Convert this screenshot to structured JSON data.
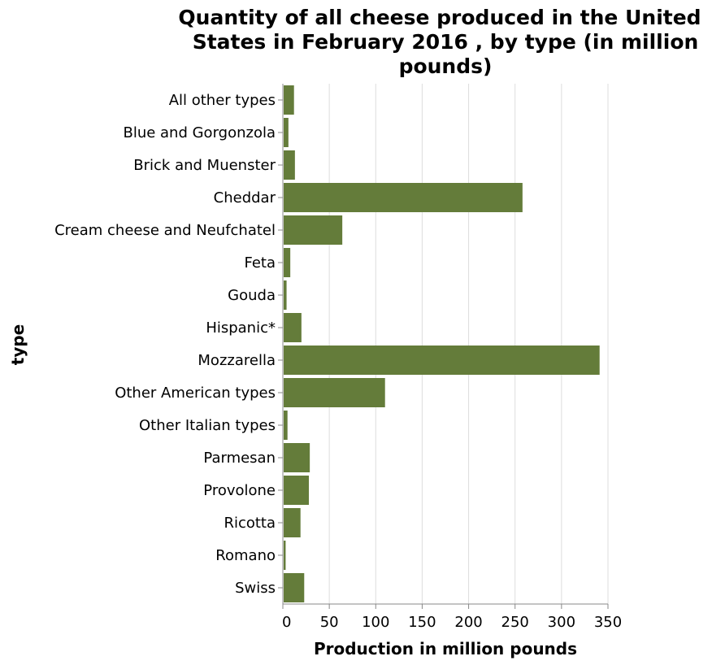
{
  "chart_data": {
    "type": "bar",
    "orientation": "horizontal",
    "title": "Quantity of all cheese produced in the United States in February 2016 , by type (in million pounds)",
    "title_lines": [
      "Quantity of all cheese produced in the United",
      "States in February 2016 , by type (in million",
      "pounds)"
    ],
    "xlabel": "Production in million pounds",
    "ylabel": "type",
    "xlim": [
      0,
      350
    ],
    "x_ticks": [
      0,
      50,
      100,
      150,
      200,
      250,
      300,
      350
    ],
    "grid": true,
    "bar_color": "#647c3a",
    "categories": [
      "All other types",
      "Blue and Gorgonzola",
      "Brick and Muenster",
      "Cheddar",
      "Cream cheese and Neufchatel",
      "Feta",
      "Gouda",
      "Hispanic*",
      "Mozzarella",
      "Other American types",
      "Other Italian types",
      "Parmesan",
      "Provolone",
      "Ricotta",
      "Romano",
      "Swiss"
    ],
    "values": [
      12,
      6,
      13,
      258,
      64,
      8,
      4,
      20,
      341,
      110,
      5,
      29,
      28,
      19,
      3,
      23
    ]
  }
}
